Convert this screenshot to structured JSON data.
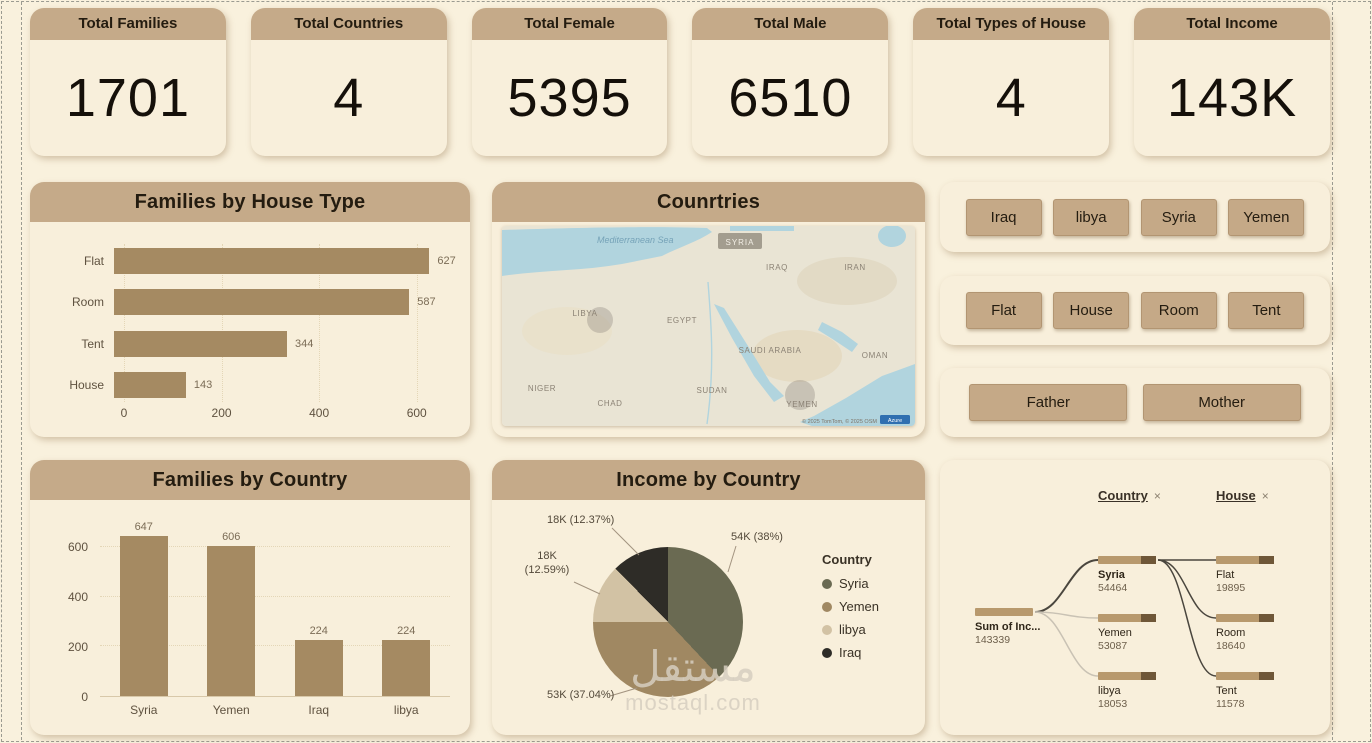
{
  "kpis": [
    {
      "title": "Total Families",
      "value": "1701"
    },
    {
      "title": "Total Countries",
      "value": "4"
    },
    {
      "title": "Total Female",
      "value": "5395"
    },
    {
      "title": "Total Male",
      "value": "6510"
    },
    {
      "title": "Total Types of House",
      "value": "4"
    },
    {
      "title": "Total Income",
      "value": "143K"
    }
  ],
  "slicers": {
    "countries": [
      "Iraq",
      "libya",
      "Syria",
      "Yemen"
    ],
    "houses": [
      "Flat",
      "House",
      "Room",
      "Tent"
    ],
    "parents": [
      "Father",
      "Mother"
    ]
  },
  "map": {
    "title": "Counrtries",
    "labels": {
      "sea": "Mediterranean Sea",
      "syria": "SYRIA",
      "iraq": "IRAQ",
      "iran": "IRAN",
      "libya": "LIBYA",
      "egypt": "EGYPT",
      "saudi": "SAUDI ARABIA",
      "oman": "OMAN",
      "sudan": "SUDAN",
      "chad": "CHAD",
      "niger": "NIGER",
      "yemen": "YEMEN"
    },
    "attribution": "© 2025 TomTom, © 2025 OSM",
    "badge": "Azure"
  },
  "watermark": {
    "line1": "مستقل",
    "line2": "mostaql.com"
  },
  "chart_data": [
    {
      "type": "bar",
      "orientation": "horizontal",
      "title": "Families by House Type",
      "categories": [
        "Flat",
        "Room",
        "Tent",
        "House"
      ],
      "values": [
        627,
        587,
        344,
        143
      ],
      "value_labels": [
        "627",
        "587",
        "344",
        "143"
      ],
      "xticks": [
        0,
        200,
        400,
        600
      ],
      "xlim": [
        0,
        660
      ],
      "bar_color": "#a58a62"
    },
    {
      "type": "bar",
      "orientation": "vertical",
      "title": "Families by Country",
      "categories": [
        "Syria",
        "Yemen",
        "Iraq",
        "libya"
      ],
      "values": [
        647,
        606,
        224,
        224
      ],
      "value_labels": [
        "647",
        "606",
        "224",
        "224"
      ],
      "yticks": [
        0,
        200,
        400,
        600
      ],
      "ylim": [
        0,
        730
      ],
      "bar_color": "#a58a62"
    },
    {
      "type": "pie",
      "title": "Income by Country",
      "legend_title": "Country",
      "legend_position": "right",
      "labels": [
        "Syria",
        "Yemen",
        "libya",
        "Iraq"
      ],
      "values": [
        54464,
        53087,
        18053,
        17735
      ],
      "percents": [
        38,
        37.04,
        12.59,
        12.37
      ],
      "slice_labels": [
        "54K (38%)",
        "53K (37.04%)",
        "18K (12.59%)",
        "18K (12.37%)"
      ],
      "colors": [
        "#6a6a52",
        "#a08862",
        "#d2c2a4",
        "#2e2c27"
      ]
    },
    {
      "type": "tree",
      "title": "Income decomposition",
      "level_headers": [
        "Country",
        "House"
      ],
      "root": {
        "label": "Sum of Inc...",
        "value": "143339"
      },
      "bar_color": "#b8996d",
      "bar_tip_color": "#6f5738",
      "levels": {
        "country": [
          {
            "label": "Syria",
            "value": "54464"
          },
          {
            "label": "Yemen",
            "value": "53087"
          },
          {
            "label": "libya",
            "value": "18053"
          }
        ],
        "house": [
          {
            "label": "Flat",
            "value": "19895"
          },
          {
            "label": "Room",
            "value": "18640"
          },
          {
            "label": "Tent",
            "value": "11578"
          }
        ]
      }
    }
  ]
}
